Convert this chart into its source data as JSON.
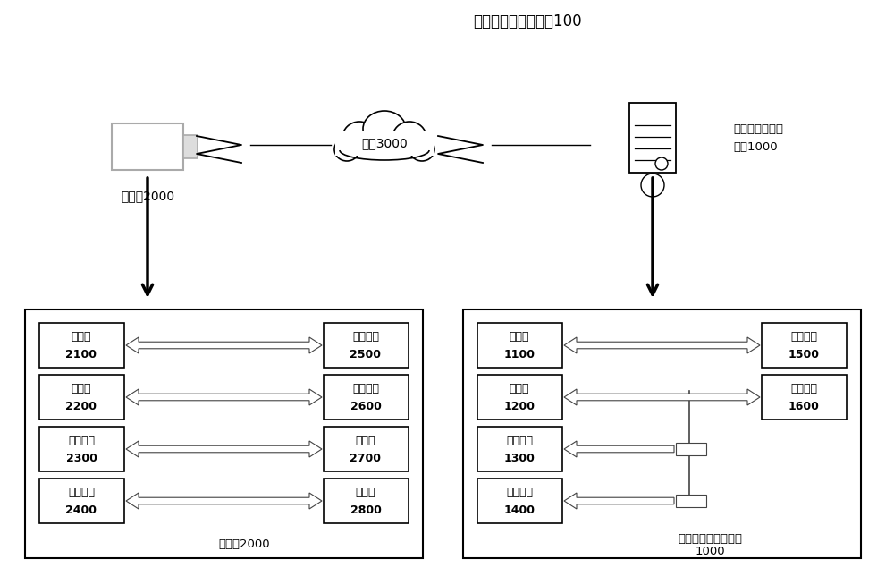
{
  "title_normal": "生产进度的确定系统",
  "title_bold": "100",
  "bg_color": "#ffffff",
  "left_panel_label": "摄像头2000",
  "right_panel_label1": "生产进度的确定装置",
  "right_panel_label2": "1000",
  "left_items": [
    {
      "name": "处理器",
      "num": "2100"
    },
    {
      "name": "存储器",
      "num": "2200"
    },
    {
      "name": "接口装置",
      "num": "2300"
    },
    {
      "name": "通信装置",
      "num": "2400"
    }
  ],
  "right_items": [
    {
      "name": "显示装置",
      "num": "2500"
    },
    {
      "name": "输入装置",
      "num": "2600"
    },
    {
      "name": "扬声器",
      "num": "2700"
    },
    {
      "name": "麦克风",
      "num": "2800"
    }
  ],
  "rp_left_items": [
    {
      "name": "处理器",
      "num": "1100"
    },
    {
      "name": "存储器",
      "num": "1200"
    },
    {
      "name": "接口装置",
      "num": "1300"
    },
    {
      "name": "通信装置",
      "num": "1400"
    }
  ],
  "rp_right_items": [
    {
      "name": "显示装置",
      "num": "1500"
    },
    {
      "name": "输入装置",
      "num": "1600"
    }
  ],
  "camera_label": "摄像头2000",
  "network_label": "网络3000",
  "server_label1": "生产进度的确定",
  "server_label2": "装置1000"
}
